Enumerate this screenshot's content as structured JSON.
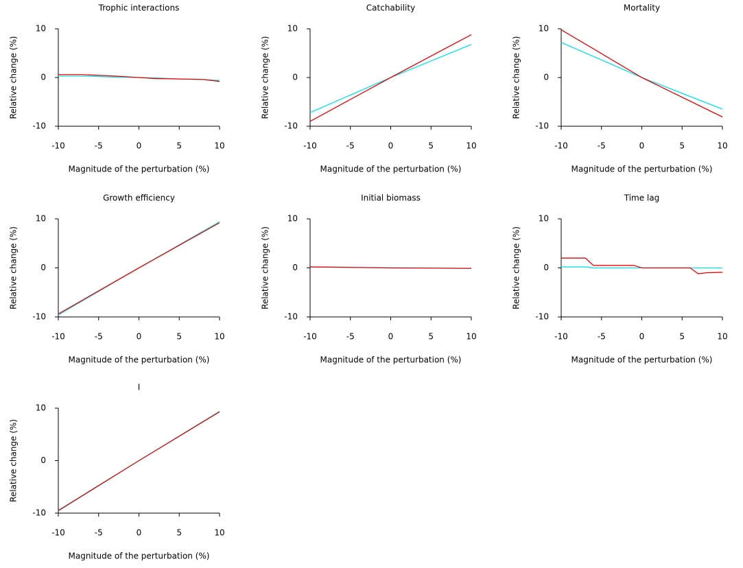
{
  "chart_data": [
    {
      "type": "line",
      "title": "Trophic interactions",
      "xlabel": "Magnitude of the perturbation (%)",
      "ylabel": "Relative change (%)",
      "x": [
        -10,
        -7,
        -3,
        0,
        2,
        5,
        8,
        10
      ],
      "series": [
        {
          "color": "#00e5ee",
          "values": [
            0.3,
            0.3,
            0.1,
            0,
            -0.1,
            -0.3,
            -0.4,
            -0.6
          ]
        },
        {
          "color": "#ee0000",
          "values": [
            0.6,
            0.6,
            0.3,
            0,
            -0.2,
            -0.3,
            -0.4,
            -0.8
          ]
        }
      ],
      "xlim": [
        -10,
        10
      ],
      "ylim": [
        -10,
        10
      ],
      "xticks": [
        -10,
        -5,
        0,
        5,
        10
      ],
      "yticks": [
        -10,
        0,
        10
      ]
    },
    {
      "type": "line",
      "title": "Catchability",
      "xlabel": "Magnitude of the perturbation (%)",
      "ylabel": "Relative change (%)",
      "x": [
        -10,
        0,
        10
      ],
      "series": [
        {
          "color": "#00e5ee",
          "values": [
            -7.2,
            0,
            6.8
          ]
        },
        {
          "color": "#ee0000",
          "values": [
            -9,
            0,
            8.8
          ]
        }
      ],
      "xlim": [
        -10,
        10
      ],
      "ylim": [
        -10,
        10
      ],
      "xticks": [
        -10,
        -5,
        0,
        5,
        10
      ],
      "yticks": [
        -10,
        0,
        10
      ]
    },
    {
      "type": "line",
      "title": "Mortality",
      "xlabel": "Magnitude of the perturbation (%)",
      "ylabel": "Relative change (%)",
      "x": [
        -10,
        0,
        10
      ],
      "series": [
        {
          "color": "#00e5ee",
          "values": [
            7.2,
            0,
            -6.5
          ]
        },
        {
          "color": "#ee0000",
          "values": [
            9.8,
            0,
            -8.1
          ]
        }
      ],
      "xlim": [
        -10,
        10
      ],
      "ylim": [
        -10,
        10
      ],
      "xticks": [
        -10,
        -5,
        0,
        5,
        10
      ],
      "yticks": [
        -10,
        0,
        10
      ]
    },
    {
      "type": "line",
      "title": "Growth efficiency",
      "xlabel": "Magnitude of the perturbation (%)",
      "ylabel": "Relative change (%)",
      "x": [
        -10,
        0,
        10
      ],
      "series": [
        {
          "color": "#00e5ee",
          "values": [
            -9.6,
            0,
            9.4
          ]
        },
        {
          "color": "#ee0000",
          "values": [
            -9.4,
            0,
            9.2
          ]
        }
      ],
      "xlim": [
        -10,
        10
      ],
      "ylim": [
        -10,
        10
      ],
      "xticks": [
        -10,
        -5,
        0,
        5,
        10
      ],
      "yticks": [
        -10,
        0,
        10
      ]
    },
    {
      "type": "line",
      "title": "Initial biomass",
      "xlabel": "Magnitude of the perturbation (%)",
      "ylabel": "Relative change (%)",
      "x": [
        -10,
        0,
        10
      ],
      "series": [
        {
          "color": "#00e5ee",
          "values": [
            0.2,
            0,
            -0.1
          ]
        },
        {
          "color": "#ee0000",
          "values": [
            0.2,
            0,
            -0.1
          ]
        }
      ],
      "xlim": [
        -10,
        10
      ],
      "ylim": [
        -10,
        10
      ],
      "xticks": [
        -10,
        -5,
        0,
        5,
        10
      ],
      "yticks": [
        -10,
        0,
        10
      ]
    },
    {
      "type": "line",
      "title": "Time lag",
      "xlabel": "Magnitude of the perturbation (%)",
      "ylabel": "Relative change (%)",
      "x": [
        -10,
        -7,
        -6,
        -1,
        0,
        6,
        7,
        8,
        10
      ],
      "series": [
        {
          "color": "#00e5ee",
          "values": [
            0.2,
            0.2,
            0,
            0,
            0,
            0,
            0,
            0,
            0
          ]
        },
        {
          "color": "#ee0000",
          "values": [
            2,
            2,
            0.5,
            0.5,
            0,
            0,
            -1.2,
            -1,
            -0.9
          ]
        }
      ],
      "xlim": [
        -10,
        10
      ],
      "ylim": [
        -10,
        10
      ],
      "xticks": [
        -10,
        -5,
        0,
        5,
        10
      ],
      "yticks": [
        -10,
        0,
        10
      ]
    },
    {
      "type": "line",
      "title": "I",
      "xlabel": "Magnitude of the perturbation (%)",
      "ylabel": "Relative change (%)",
      "x": [
        -10,
        0,
        10
      ],
      "series": [
        {
          "color": "#00e5ee",
          "values": [
            -9.6,
            0,
            9.4
          ]
        },
        {
          "color": "#ee0000",
          "values": [
            -9.5,
            0,
            9.3
          ]
        }
      ],
      "xlim": [
        -10,
        10
      ],
      "ylim": [
        -10,
        10
      ],
      "xticks": [
        -10,
        -5,
        0,
        5,
        10
      ],
      "yticks": [
        -10,
        0,
        10
      ]
    }
  ]
}
